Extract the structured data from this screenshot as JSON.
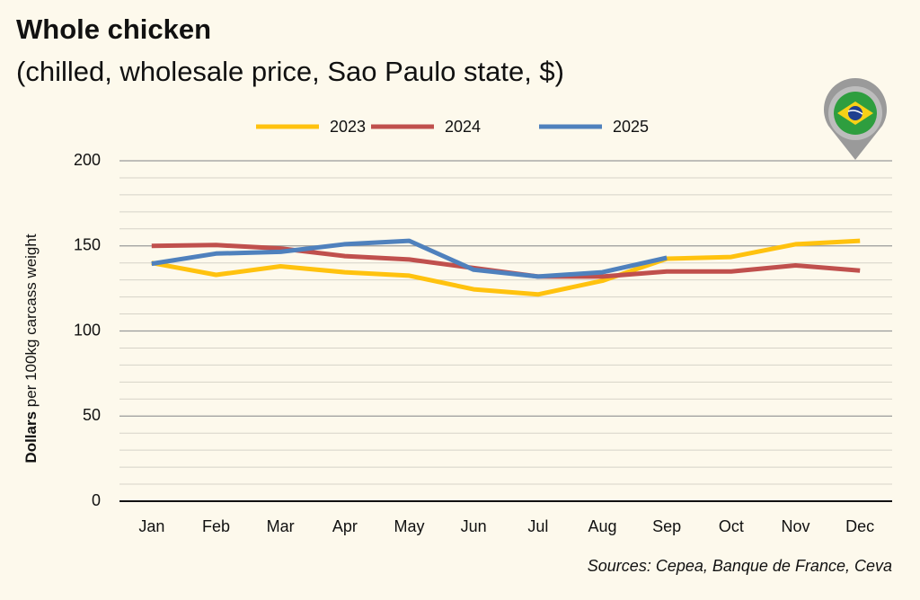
{
  "chart_data": {
    "type": "line",
    "title": "Whole chicken",
    "subtitle": "(chilled, wholesale price, Sao Paulo state, $)",
    "y_label": {
      "bold": "Dollars",
      "rest": "per 100kg carcass weight"
    },
    "source": "Sources: Cepea, Banque de France, Ceva",
    "categories": [
      "Jan",
      "Feb",
      "Mar",
      "Apr",
      "May",
      "Jun",
      "Jul",
      "Aug",
      "Sep",
      "Oct",
      "Nov",
      "Dec"
    ],
    "series": [
      {
        "name": "2023",
        "color": "#ffc20e",
        "values": [
          140,
          133,
          138,
          134.5,
          132.5,
          124.5,
          121.5,
          129.5,
          142.5,
          143.5,
          151,
          153
        ]
      },
      {
        "name": "2024",
        "color": "#c0504d",
        "values": [
          150,
          150.5,
          148.5,
          144,
          142,
          137,
          132,
          132,
          135,
          135,
          138.5,
          135.5
        ]
      },
      {
        "name": "2025",
        "color": "#4f81bd",
        "values": [
          139.5,
          145.5,
          146.5,
          151,
          153,
          136,
          132,
          134.5,
          143,
          null,
          null,
          null
        ]
      }
    ],
    "ylim": [
      0,
      200
    ],
    "yticks": [
      0,
      50,
      100,
      150,
      200
    ],
    "minor_grid_lines": [
      10,
      20,
      30,
      40,
      60,
      70,
      80,
      90,
      110,
      120,
      130,
      140,
      160,
      170,
      180,
      190
    ],
    "grid": true,
    "legend": "top"
  }
}
